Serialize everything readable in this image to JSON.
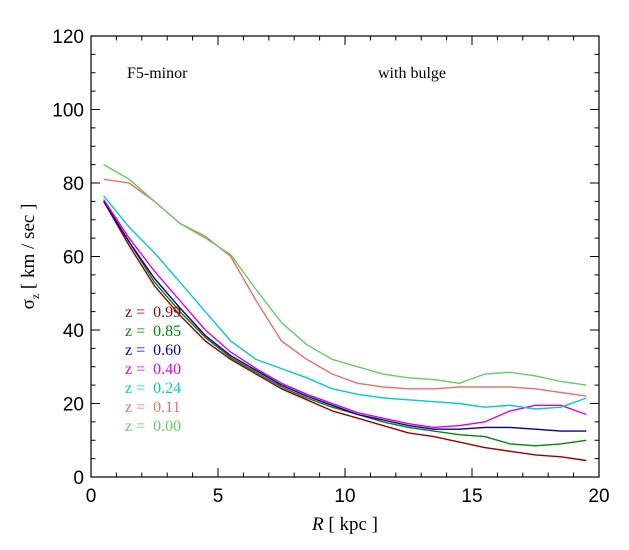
{
  "chart_data": {
    "type": "line",
    "xlabel": {
      "symbol": "R",
      "unit": " [ kpc ]"
    },
    "ylabel": {
      "symbol": "σ",
      "sub": "z",
      "unit": "  [ km / sec ]"
    },
    "xlim": [
      0,
      20
    ],
    "ylim": [
      0,
      120
    ],
    "xticks": [
      0,
      5,
      10,
      15,
      20
    ],
    "yticks": [
      0,
      20,
      40,
      60,
      80,
      100,
      120
    ],
    "grid": false,
    "annotations": {
      "left": "F5-minor",
      "right": "with bulge"
    },
    "legend_placement": "lower-left inside",
    "x": [
      0.5,
      1.5,
      2.5,
      3.5,
      4.5,
      5.5,
      6.5,
      7.5,
      8.5,
      9.5,
      10.5,
      11.5,
      12.5,
      13.5,
      14.5,
      15.5,
      16.5,
      17.5,
      18.5,
      19.5
    ],
    "series": [
      {
        "name": "z =  0.99",
        "color": "#990000",
        "values": [
          75,
          63,
          52,
          44,
          37,
          32,
          28,
          24,
          21,
          18,
          16,
          14,
          12,
          11,
          9.5,
          8,
          7,
          6,
          5.5,
          4.5
        ]
      },
      {
        "name": "z =  0.85",
        "color": "#008800",
        "values": [
          75,
          64,
          53,
          45,
          38,
          32.5,
          28.5,
          24.5,
          21.5,
          19,
          17,
          15,
          13.5,
          12.5,
          11.5,
          11,
          9,
          8.5,
          9,
          10
        ]
      },
      {
        "name": "z =  0.60",
        "color": "#000099",
        "values": [
          75,
          64,
          54,
          46,
          38.5,
          33,
          29,
          25,
          22,
          19.5,
          17,
          15.5,
          14,
          13,
          13,
          13.5,
          13.5,
          13,
          12.5,
          12.5
        ]
      },
      {
        "name": "z =  0.40",
        "color": "#dd00dd",
        "values": [
          75.5,
          65,
          56,
          48,
          40,
          34,
          29.5,
          25.5,
          22.5,
          20,
          17.5,
          16,
          14.5,
          13.5,
          14,
          15,
          18,
          19.5,
          19.5,
          17
        ]
      },
      {
        "name": "z =  0.24",
        "color": "#00cccc",
        "values": [
          76.5,
          68,
          61,
          53,
          45,
          37,
          32,
          29.5,
          27,
          24,
          22.5,
          21.5,
          21,
          20.5,
          20,
          19,
          19.5,
          18.5,
          19,
          21.5
        ]
      },
      {
        "name": "z =  0.11",
        "color": "#e87070",
        "values": [
          81,
          80,
          75,
          69,
          65.5,
          60,
          48,
          37,
          32,
          28,
          25.5,
          24.5,
          24,
          24,
          24.5,
          24.5,
          24.5,
          24,
          23,
          22
        ]
      },
      {
        "name": "z =  0.00",
        "color": "#66cc66",
        "values": [
          85,
          81,
          75,
          69,
          65,
          60.5,
          51,
          42,
          36,
          32,
          30,
          28,
          27,
          26.5,
          25.5,
          28,
          28.5,
          27.5,
          26,
          25
        ]
      }
    ]
  }
}
